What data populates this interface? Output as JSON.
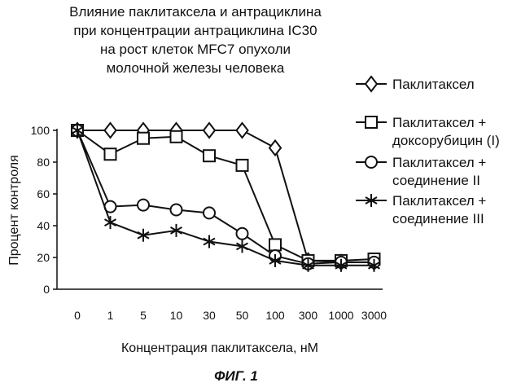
{
  "chart_data": {
    "type": "line",
    "title_lines": [
      "Влияние паклитаксела и антрациклина",
      "при концентрации антрациклина IC30",
      "на рост клеток MFC7 опухоли",
      "молочной железы человека"
    ],
    "xlabel": "Концентрация паклитаксела, нМ",
    "ylabel": "Процент контроля",
    "categories": [
      "0",
      "1",
      "5",
      "10",
      "30",
      "50",
      "100",
      "300",
      "1000",
      "3000"
    ],
    "ylim": [
      0,
      100
    ],
    "yticks": [
      0,
      20,
      40,
      60,
      80,
      100
    ],
    "legend_position": "right",
    "series": [
      {
        "legend": [
          "Паклитаксел"
        ],
        "marker": "diamond",
        "values": [
          100,
          100,
          100,
          100,
          100,
          100,
          89,
          18,
          17,
          17
        ]
      },
      {
        "legend": [
          "Паклитаксел +",
          "доксорубицин (I)"
        ],
        "marker": "square",
        "values": [
          100,
          85,
          95,
          96,
          84,
          78,
          28,
          18,
          18,
          19
        ]
      },
      {
        "legend": [
          "Паклитаксел +",
          "соединение II"
        ],
        "marker": "circle",
        "values": [
          100,
          52,
          53,
          50,
          48,
          35,
          21,
          16,
          17,
          17
        ]
      },
      {
        "legend": [
          "Паклитаксел +",
          "соединение III"
        ],
        "marker": "asterisk",
        "values": [
          100,
          42,
          34,
          37,
          30,
          27,
          18,
          15,
          15,
          15
        ]
      }
    ]
  },
  "caption": "ФИГ. 1"
}
